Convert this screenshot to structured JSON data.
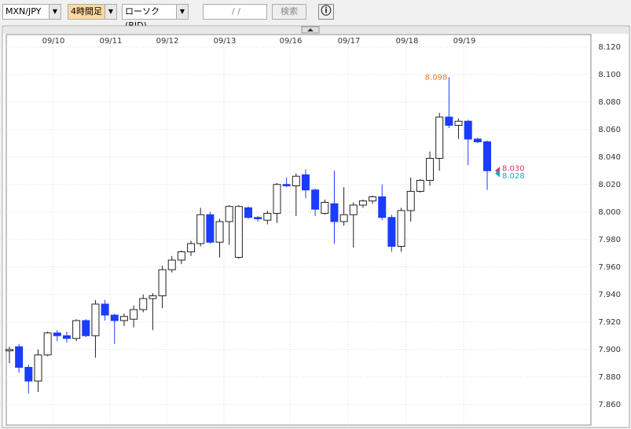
{
  "toolbar": {
    "pair": "MXN/JPY",
    "period": "4時間足",
    "chart_type": "ローソク(BID)",
    "date": "/ /",
    "search": "検索"
  },
  "chart_data": {
    "type": "candlestick",
    "dates": [
      "09/10",
      "09/11",
      "09/12",
      "09/13",
      "09/16",
      "09/17",
      "09/18",
      "09/19"
    ],
    "up_color": "#ffffff",
    "down_color": "#1a3cff",
    "open": [
      7.899,
      7.902,
      7.887,
      7.877,
      7.896,
      7.912,
      7.91,
      7.908,
      7.921,
      7.91,
      7.933,
      7.925,
      7.921,
      7.922,
      7.929,
      7.937,
      7.939,
      7.958,
      7.965,
      7.971,
      7.977,
      7.998,
      7.978,
      7.993,
      7.967,
      8.003,
      7.996,
      7.994,
      7.999,
      8.02,
      8.019,
      8.027,
      8.016,
      7.999,
      8.006,
      7.993,
      7.998,
      8.005,
      8.008,
      8.011,
      7.996,
      7.975,
      8.001,
      8.015,
      8.023,
      8.039,
      8.069,
      8.063,
      8.066,
      8.053,
      8.051
    ],
    "high": [
      7.902,
      7.904,
      7.889,
      7.9,
      7.913,
      7.914,
      7.913,
      7.922,
      7.922,
      7.936,
      7.936,
      7.926,
      7.926,
      7.932,
      7.94,
      7.941,
      7.961,
      7.968,
      7.972,
      7.979,
      8.003,
      8.0,
      7.995,
      8.005,
      8.005,
      8.004,
      7.997,
      8.001,
      8.021,
      8.025,
      8.028,
      8.031,
      8.017,
      8.009,
      8.03,
      8.018,
      8.007,
      8.009,
      8.012,
      8.02,
      7.998,
      8.003,
      8.025,
      8.024,
      8.044,
      8.072,
      8.098,
      8.068,
      8.067,
      8.054,
      8.052
    ],
    "low": [
      7.89,
      7.883,
      7.868,
      7.869,
      7.895,
      7.906,
      7.905,
      7.906,
      7.909,
      7.894,
      7.921,
      7.904,
      7.917,
      7.916,
      7.927,
      7.914,
      7.93,
      7.956,
      7.962,
      7.968,
      7.975,
      7.977,
      7.967,
      7.976,
      7.966,
      7.995,
      7.993,
      7.991,
      7.992,
      8.018,
      7.997,
      8.01,
      7.997,
      7.998,
      7.977,
      7.99,
      7.974,
      8.003,
      8.006,
      7.994,
      7.971,
      7.971,
      7.993,
      8.014,
      8.019,
      8.03,
      8.061,
      8.053,
      8.034,
      8.05,
      8.016
    ],
    "close": [
      7.9,
      7.887,
      7.877,
      7.896,
      7.912,
      7.91,
      7.908,
      7.921,
      7.91,
      7.933,
      7.925,
      7.921,
      7.924,
      7.929,
      7.937,
      7.939,
      7.958,
      7.965,
      7.971,
      7.977,
      7.998,
      7.978,
      7.993,
      8.004,
      8.004,
      7.996,
      7.995,
      7.999,
      8.02,
      8.019,
      8.026,
      8.016,
      8.002,
      8.007,
      7.993,
      7.998,
      8.005,
      8.008,
      8.011,
      7.996,
      7.975,
      8.001,
      8.015,
      8.023,
      8.039,
      8.069,
      8.063,
      8.066,
      8.053,
      8.051,
      8.03
    ],
    "high_label": {
      "value": 8.098,
      "label": "8.098",
      "color": "#e07a20"
    },
    "price_markers": [
      {
        "value": 8.03,
        "label": "8.030",
        "color": "#e0306a"
      },
      {
        "value": 8.028,
        "label": "8.028",
        "color": "#20a8c0"
      }
    ],
    "ylim": [
      7.845,
      8.129
    ],
    "yticks": [
      {
        "value": 7.86,
        "label": "7.860"
      },
      {
        "value": 7.88,
        "label": "7.880"
      },
      {
        "value": 7.9,
        "label": "7.900"
      },
      {
        "value": 7.92,
        "label": "7.920"
      },
      {
        "value": 7.94,
        "label": "7.940"
      },
      {
        "value": 7.96,
        "label": "7.960"
      },
      {
        "value": 7.98,
        "label": "7.980"
      },
      {
        "value": 8.0,
        "label": "8.000"
      },
      {
        "value": 8.02,
        "label": "8.020"
      },
      {
        "value": 8.04,
        "label": "8.040"
      },
      {
        "value": 8.06,
        "label": "8.060"
      },
      {
        "value": 8.08,
        "label": "8.080"
      },
      {
        "value": 8.1,
        "label": "8.100"
      },
      {
        "value": 8.12,
        "label": "8.120"
      }
    ],
    "grid": true
  }
}
